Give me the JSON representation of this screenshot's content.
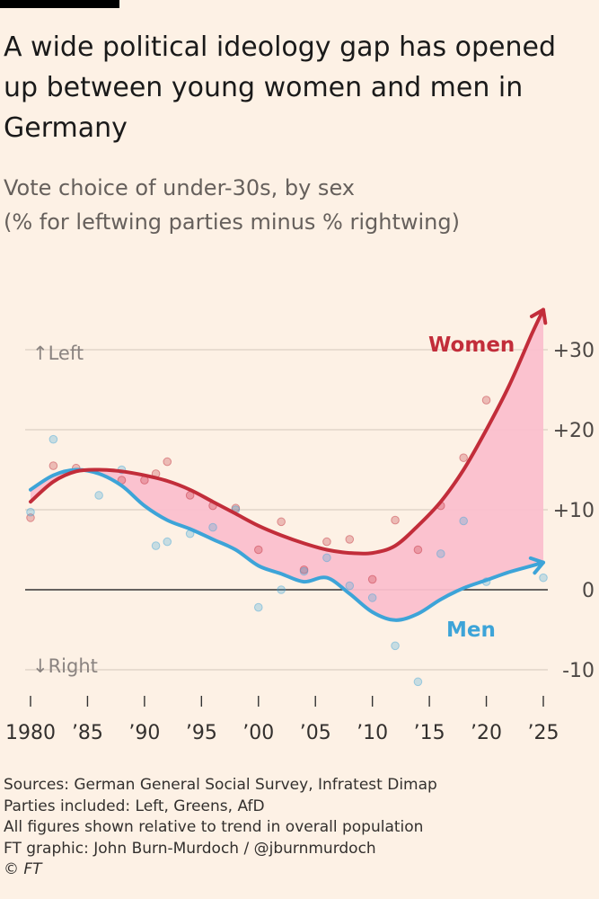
{
  "header": {
    "title": "A wide political ideology gap has opened up between young women and men in Germany",
    "subtitle_line1": "Vote choice of under-30s, by sex",
    "subtitle_line2": "(% for leftwing parties minus % rightwing)"
  },
  "footer": {
    "sources": "Sources: German General Social Survey, Infratest Dimap",
    "parties": "Parties included: Left, Greens, AfD",
    "note": "All figures shown relative to trend in overall population",
    "credit": "FT graphic: John Burn-Murdoch / @jburnmurdoch",
    "copyright": "© FT"
  },
  "colors": {
    "women": "#c22d3a",
    "men": "#3da4d8",
    "gap_fill": "#fbbfcd",
    "zero_line": "#333333",
    "grid": "#e2d6c9"
  },
  "chart_data": {
    "type": "line",
    "title": "A wide political ideology gap has opened up between young women and men in Germany",
    "subtitle": "Vote choice of under-30s, by sex (% for leftwing parties minus % rightwing)",
    "xlim": [
      1980,
      2025
    ],
    "ylim": [
      -12,
      37
    ],
    "x_ticks": [
      1980,
      1985,
      1990,
      1995,
      2000,
      2005,
      2010,
      2015,
      2020,
      2025
    ],
    "x_tick_labels": [
      "1980",
      "’85",
      "’90",
      "’95",
      "’00",
      "’05",
      "’10",
      "’15",
      "’20",
      "’25"
    ],
    "y_ticks": [
      30,
      20,
      10,
      0,
      -10
    ],
    "y_tick_labels": [
      "+30",
      "+20",
      "+10",
      "0",
      "-10"
    ],
    "y_axis_position": "right",
    "direction_labels": {
      "up": "Left",
      "down": "Right"
    },
    "grid": true,
    "shaded_gap_between_series": true,
    "series": [
      {
        "name": "Women",
        "color": "#c22d3a",
        "trend": [
          [
            1980,
            11
          ],
          [
            1982,
            13.5
          ],
          [
            1984,
            14.8
          ],
          [
            1986,
            15
          ],
          [
            1988,
            14.8
          ],
          [
            1990,
            14.3
          ],
          [
            1992,
            13.6
          ],
          [
            1994,
            12.5
          ],
          [
            1996,
            11
          ],
          [
            1998,
            9.5
          ],
          [
            2000,
            8
          ],
          [
            2002,
            6.8
          ],
          [
            2004,
            5.8
          ],
          [
            2006,
            5
          ],
          [
            2008,
            4.6
          ],
          [
            2010,
            4.6
          ],
          [
            2012,
            5.5
          ],
          [
            2014,
            8
          ],
          [
            2016,
            11
          ],
          [
            2018,
            15
          ],
          [
            2020,
            20
          ],
          [
            2022,
            25.5
          ],
          [
            2024,
            32
          ],
          [
            2025,
            35
          ]
        ],
        "points": [
          [
            1980,
            9
          ],
          [
            1982,
            15.5
          ],
          [
            1984,
            15.2
          ],
          [
            1988,
            13.7
          ],
          [
            1990,
            13.7
          ],
          [
            1991,
            14.5
          ],
          [
            1992,
            16
          ],
          [
            1994,
            11.8
          ],
          [
            1996,
            10.5
          ],
          [
            1998,
            10.2
          ],
          [
            2000,
            5
          ],
          [
            2002,
            8.5
          ],
          [
            2004,
            2.5
          ],
          [
            2006,
            6
          ],
          [
            2008,
            6.3
          ],
          [
            2010,
            1.3
          ],
          [
            2012,
            8.7
          ],
          [
            2014,
            5
          ],
          [
            2016,
            10.5
          ],
          [
            2018,
            16.5
          ],
          [
            2020,
            23.7
          ]
        ]
      },
      {
        "name": "Men",
        "color": "#3da4d8",
        "trend": [
          [
            1980,
            12.5
          ],
          [
            1982,
            14.3
          ],
          [
            1984,
            15
          ],
          [
            1986,
            14.5
          ],
          [
            1988,
            13
          ],
          [
            1990,
            10.5
          ],
          [
            1992,
            8.7
          ],
          [
            1994,
            7.6
          ],
          [
            1996,
            6.3
          ],
          [
            1998,
            5
          ],
          [
            2000,
            3
          ],
          [
            2002,
            2
          ],
          [
            2004,
            1
          ],
          [
            2006,
            1.5
          ],
          [
            2008,
            -0.5
          ],
          [
            2010,
            -2.8
          ],
          [
            2012,
            -3.8
          ],
          [
            2014,
            -3
          ],
          [
            2016,
            -1.2
          ],
          [
            2018,
            0.2
          ],
          [
            2020,
            1.2
          ],
          [
            2022,
            2.2
          ],
          [
            2024,
            3
          ],
          [
            2025,
            3.4
          ]
        ],
        "points": [
          [
            1980,
            9.7
          ],
          [
            1982,
            18.8
          ],
          [
            1986,
            11.8
          ],
          [
            1988,
            15
          ],
          [
            1991,
            5.5
          ],
          [
            1992,
            6
          ],
          [
            1994,
            7
          ],
          [
            1996,
            7.8
          ],
          [
            1998,
            10
          ],
          [
            2000,
            -2.2
          ],
          [
            2002,
            0
          ],
          [
            2004,
            2.3
          ],
          [
            2006,
            4
          ],
          [
            2008,
            0.5
          ],
          [
            2010,
            -1
          ],
          [
            2012,
            -7
          ],
          [
            2014,
            -11.5
          ],
          [
            2016,
            4.5
          ],
          [
            2018,
            8.6
          ],
          [
            2020,
            1
          ],
          [
            2025,
            1.5
          ]
        ]
      }
    ],
    "annotations": [
      "Women",
      "Men"
    ]
  }
}
